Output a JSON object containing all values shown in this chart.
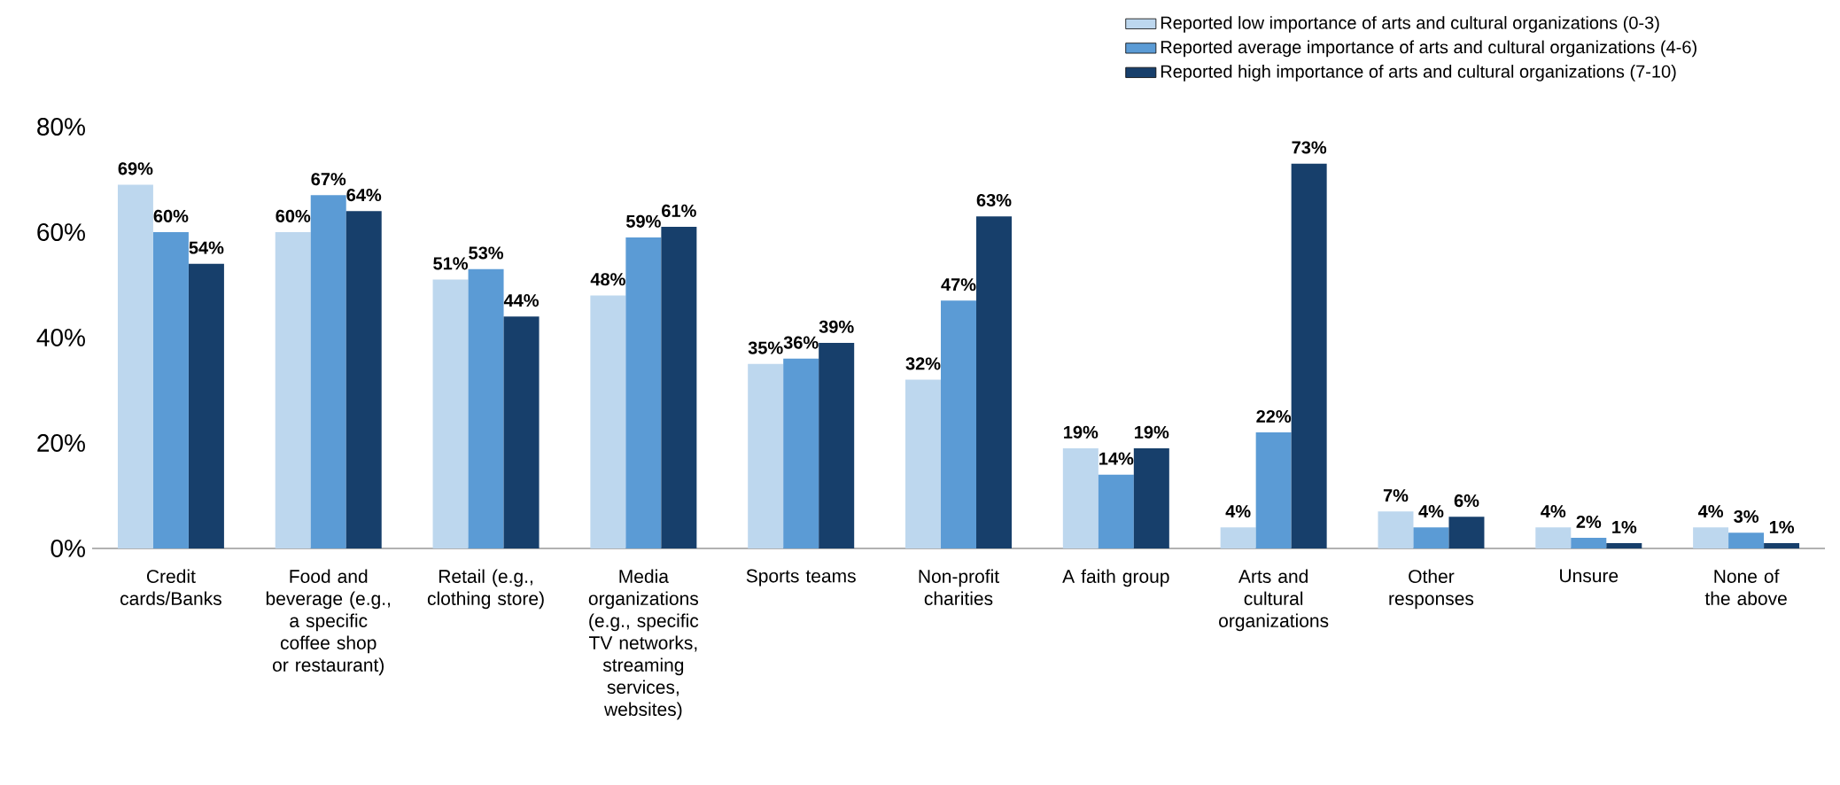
{
  "chart_data": {
    "type": "bar",
    "categories": [
      "Credit cards/Banks",
      "Food and beverage (e.g., a specific coffee shop or restaurant)",
      "Retail (e.g., clothing store)",
      "Media organizations (e.g., specific TV networks, streaming services, websites)",
      "Sports teams",
      "Non-profit charities",
      "A faith group",
      "Arts and cultural organizations",
      "Other responses",
      "Unsure",
      "None of the above"
    ],
    "series": [
      {
        "name": "Reported low importance of arts and cultural organizations (0-3)",
        "color": "#bdd7ee",
        "values": [
          69,
          60,
          51,
          48,
          35,
          32,
          19,
          4,
          7,
          4,
          4
        ],
        "value_labels": [
          "69%",
          "60%",
          "51%",
          "48%",
          "35%",
          "32%",
          "19%",
          "4%",
          "7%",
          "4%",
          "4%"
        ]
      },
      {
        "name": "Reported average importance of arts and cultural organizations (4-6)",
        "color": "#5b9bd5",
        "values": [
          60,
          67,
          53,
          59,
          36,
          47,
          14,
          22,
          4,
          2,
          3
        ],
        "value_labels": [
          "60%",
          "67%",
          "53%",
          "59%",
          "36%",
          "47%",
          "14%",
          "22%",
          "4%",
          "2%",
          "3%"
        ]
      },
      {
        "name": "Reported high importance of arts and cultural organizations (7-10)",
        "color": "#173f6b",
        "values": [
          54,
          64,
          44,
          61,
          39,
          63,
          19,
          73,
          6,
          1,
          1
        ],
        "value_labels": [
          "54%",
          "64%",
          "44%",
          "61%",
          "39%",
          "63%",
          "19%",
          "73%",
          "6%",
          "1%",
          "1%"
        ]
      }
    ],
    "ylim": [
      0,
      80
    ],
    "yticks": [
      {
        "value": 0,
        "label": "0%"
      },
      {
        "value": 20,
        "label": "20%"
      },
      {
        "value": 40,
        "label": "40%"
      },
      {
        "value": 60,
        "label": "60%"
      },
      {
        "value": 80,
        "label": "80%"
      }
    ],
    "legend": "top right",
    "grid": false
  }
}
